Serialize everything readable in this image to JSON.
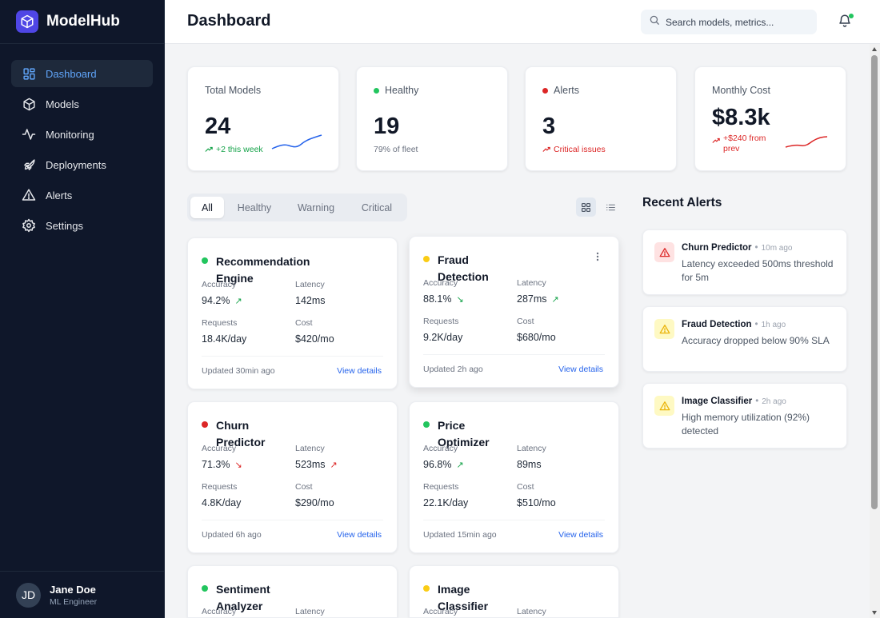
{
  "brand": {
    "name": "ModelHub"
  },
  "nav": [
    {
      "label": "Dashboard",
      "icon": "grid-icon",
      "active": true
    },
    {
      "label": "Models",
      "icon": "cube-icon"
    },
    {
      "label": "Monitoring",
      "icon": "activity-icon"
    },
    {
      "label": "Deployments",
      "icon": "rocket-icon"
    },
    {
      "label": "Alerts",
      "icon": "warning-icon"
    },
    {
      "label": "Settings",
      "icon": "gear-icon"
    }
  ],
  "user": {
    "initials": "JD",
    "name": "Jane Doe",
    "role": "ML Engineer"
  },
  "header": {
    "title": "Dashboard",
    "search_placeholder": "Search models, metrics..."
  },
  "stats": [
    {
      "label": "Total Models",
      "value": "24",
      "sub": "+2 this week"
    },
    {
      "label": "Healthy",
      "value": "19",
      "sub": "79% of fleet"
    },
    {
      "label": "Alerts",
      "value": "3",
      "sub": "Critical issues"
    },
    {
      "label": "Monthly Cost",
      "value": "$8.3k",
      "sub": "+$240 from prev"
    }
  ],
  "filters": {
    "tabs": [
      "All",
      "Healthy",
      "Warning",
      "Critical"
    ],
    "active": "All"
  },
  "metric_labels": {
    "accuracy": "Accuracy",
    "latency": "Latency",
    "requests": "Requests",
    "cost": "Cost"
  },
  "view_details_label": "View details",
  "models": [
    {
      "name": "Recommendation Engine",
      "status": "healthy",
      "accuracy": "94.2%",
      "accuracy_trend": "up",
      "latency": "142ms",
      "requests": "18.4K/day",
      "cost": "$420/mo",
      "updated": "Updated 30min ago"
    },
    {
      "name": "Fraud Detection",
      "status": "warning",
      "accuracy": "88.1%",
      "accuracy_trend": "down",
      "latency": "287ms",
      "latency_trend": "up",
      "requests": "9.2K/day",
      "cost": "$680/mo",
      "updated": "Updated 2h ago"
    },
    {
      "name": "Churn Predictor",
      "status": "critical",
      "accuracy": "71.3%",
      "accuracy_trend": "down",
      "latency": "523ms",
      "latency_trend": "up",
      "requests": "4.8K/day",
      "cost": "$290/mo",
      "updated": "Updated 6h ago"
    },
    {
      "name": "Price Optimizer",
      "status": "healthy",
      "accuracy": "96.8%",
      "accuracy_trend": "up",
      "latency": "89ms",
      "requests": "22.1K/day",
      "cost": "$510/mo",
      "updated": "Updated 15min ago"
    },
    {
      "name": "Sentiment Analyzer",
      "status": "healthy"
    },
    {
      "name": "Image Classifier",
      "status": "warning"
    }
  ],
  "recent_alerts": {
    "title": "Recent Alerts",
    "items": [
      {
        "model": "Churn Predictor",
        "time": "10m ago",
        "message": "Latency exceeded 500ms threshold for 5m",
        "severity": "critical"
      },
      {
        "model": "Fraud Detection",
        "time": "1h ago",
        "message": "Accuracy dropped below 90% SLA",
        "severity": "warning"
      },
      {
        "model": "Image Classifier",
        "time": "2h ago",
        "message": "High memory utilization (92%) detected",
        "severity": "warning"
      }
    ]
  },
  "colors": {
    "healthy": "#22c55e",
    "warning": "#facc15",
    "critical": "#dc2626",
    "accent": "#2563eb",
    "sidebar": "#0f172a"
  }
}
